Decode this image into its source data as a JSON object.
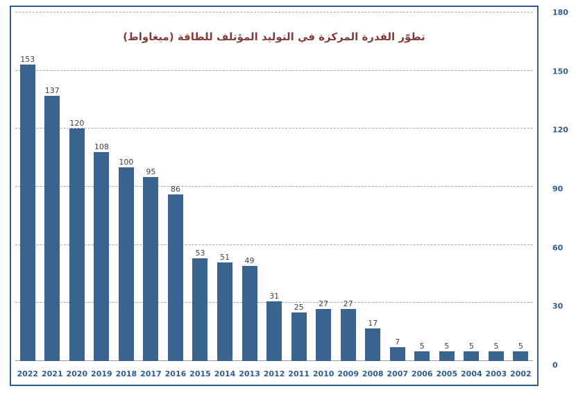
{
  "chart_data": {
    "type": "bar",
    "title": "تطوّر القدرة المركزة في التوليد المؤتلف للطاقة (ميغاواط)",
    "categories": [
      "2022",
      "2021",
      "2020",
      "2019",
      "2018",
      "2017",
      "2016",
      "2015",
      "2014",
      "2013",
      "2012",
      "2011",
      "2010",
      "2009",
      "2008",
      "2007",
      "2006",
      "2005",
      "2004",
      "2003",
      "2002"
    ],
    "values": [
      153,
      137,
      120,
      108,
      100,
      95,
      86,
      53,
      51,
      49,
      31,
      25,
      27,
      27,
      17,
      7,
      5,
      5,
      5,
      5,
      5
    ],
    "xlabel": "",
    "ylabel": "",
    "ylim": [
      0,
      180
    ],
    "yticks": [
      0,
      30,
      60,
      90,
      120,
      150,
      180
    ],
    "grid": "horizontal-dashed",
    "legend": "none",
    "bar_color": "#3a648f",
    "frame_color": "#2e5b94",
    "axis_label_color": "#2e5b94",
    "value_label_color": "#3f3f3f",
    "title_color": "#833c39",
    "yaxis_side": "right"
  }
}
